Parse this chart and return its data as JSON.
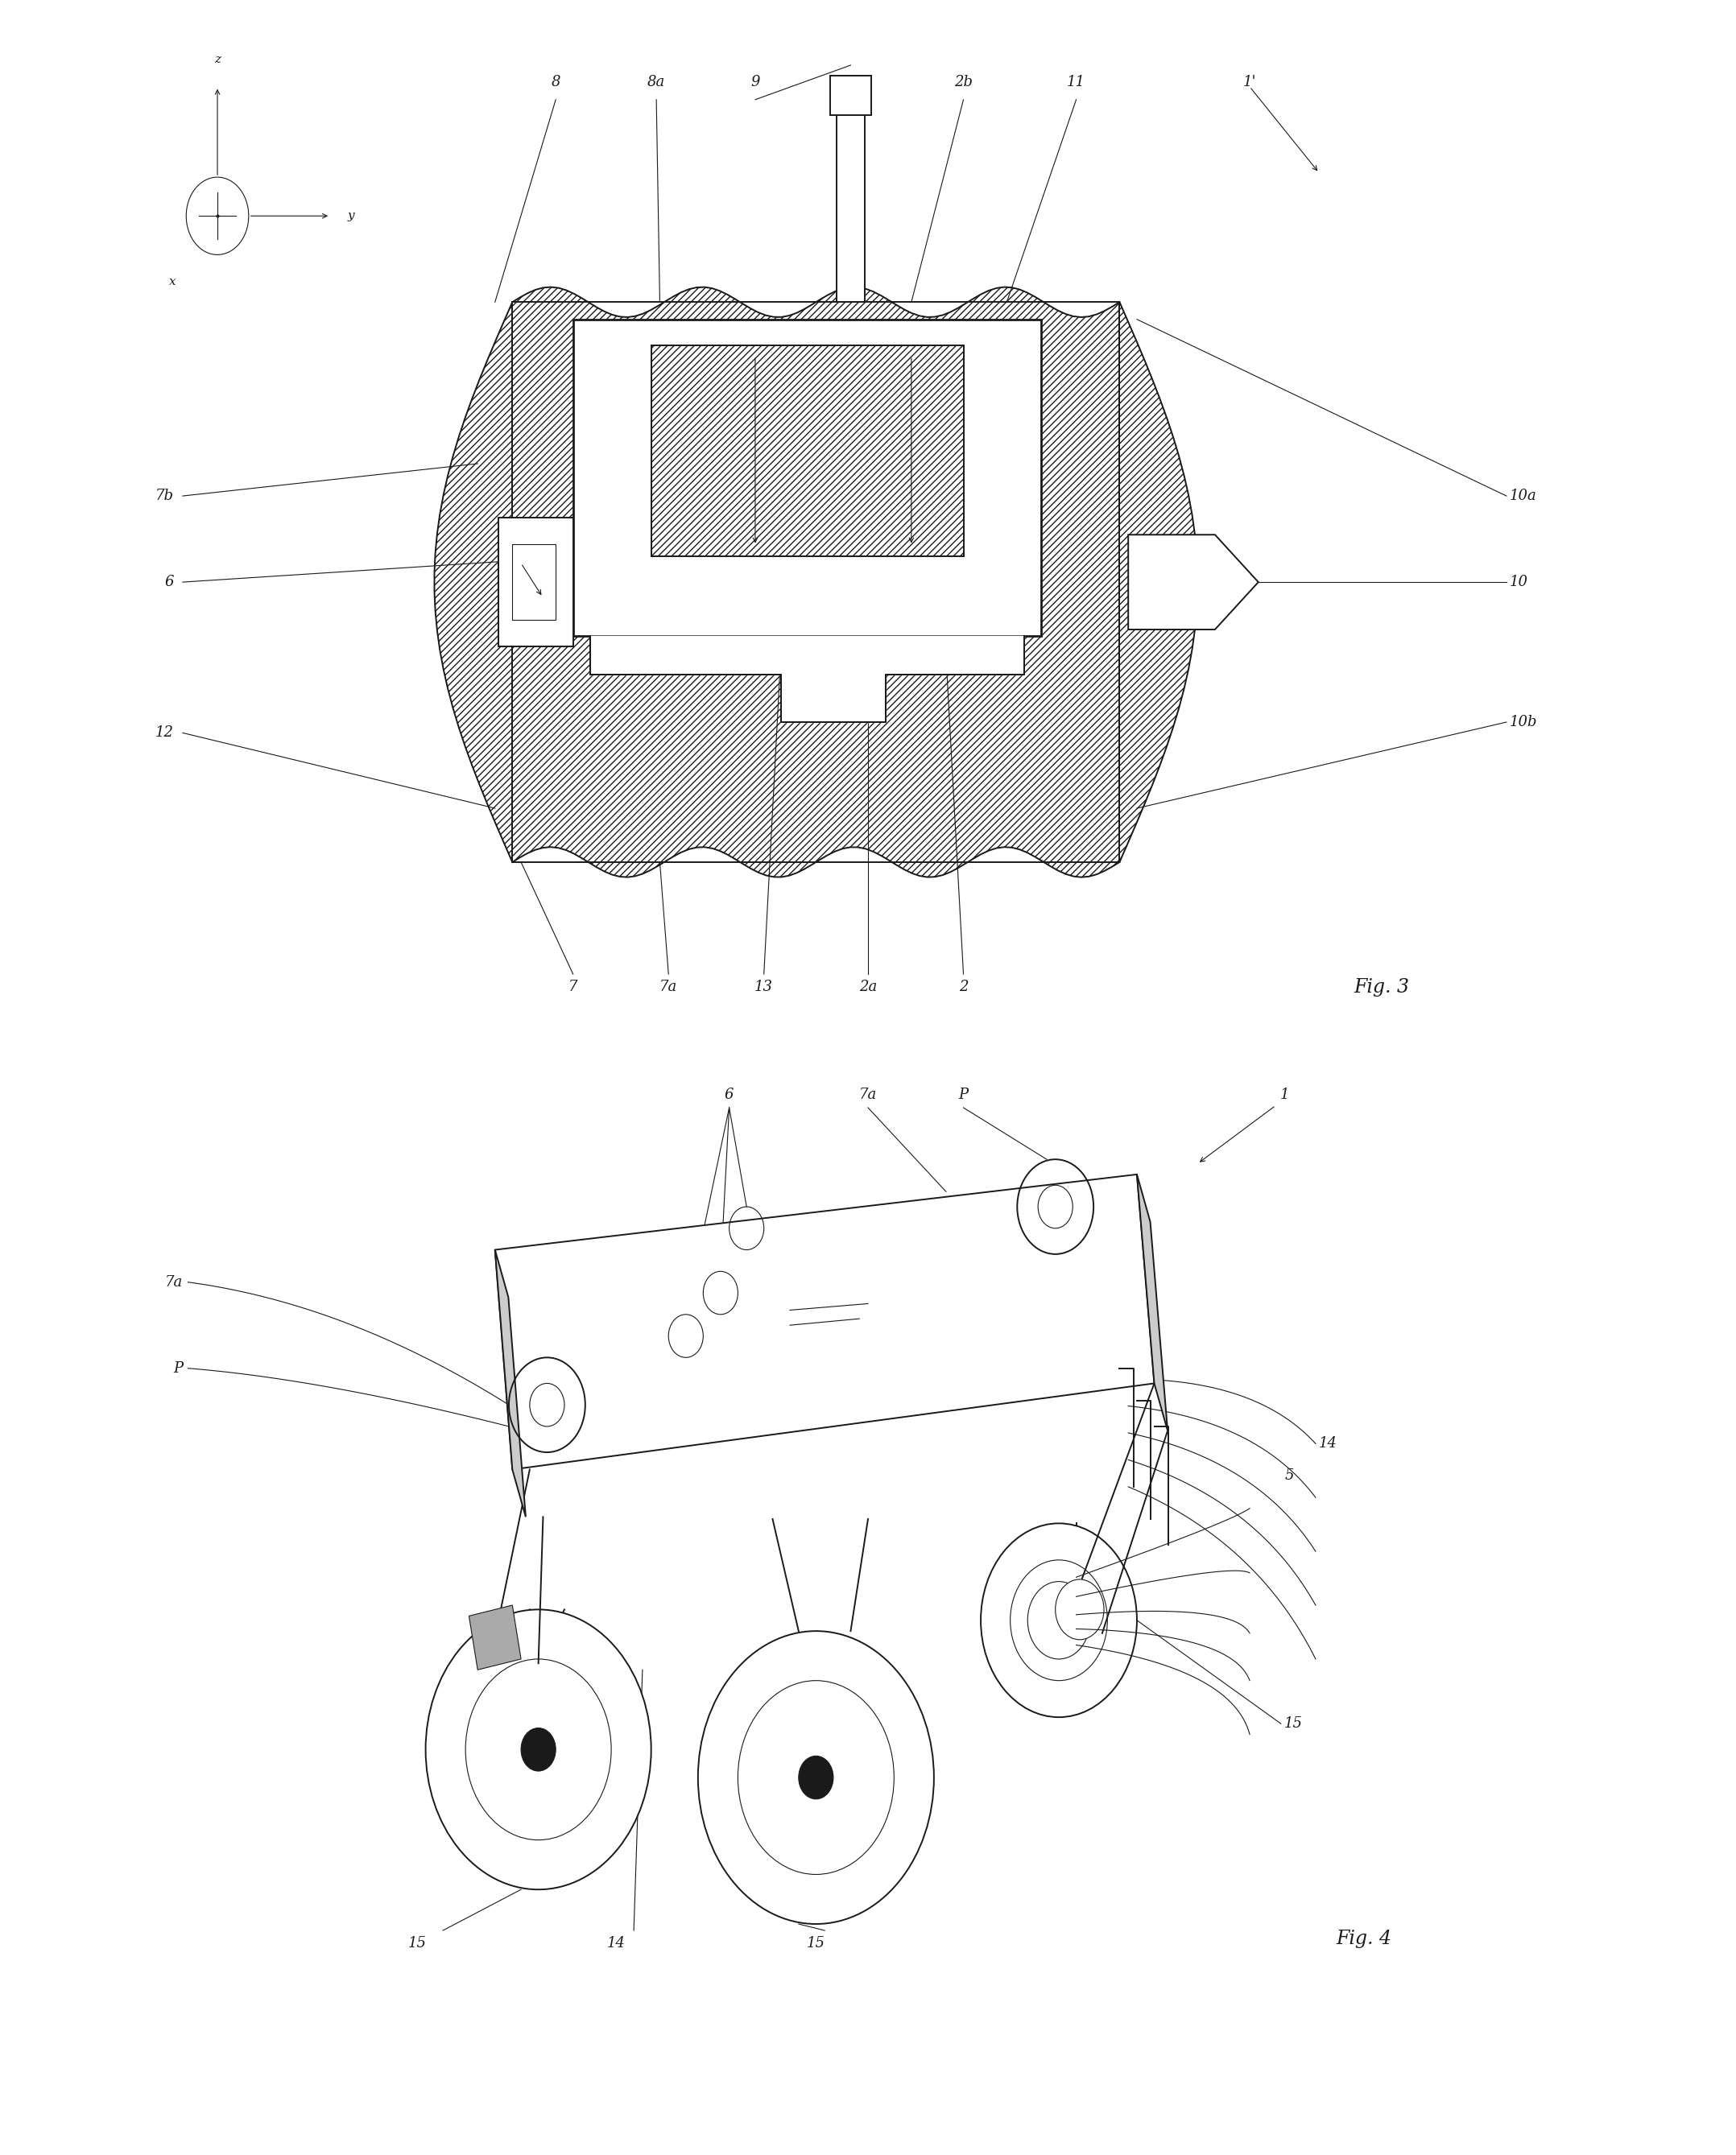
{
  "bg_color": "#ffffff",
  "line_color": "#1a1a1a",
  "fig_width": 21.56,
  "fig_height": 26.77,
  "fig3_label": "Fig. 3",
  "fig4_label": "Fig. 4",
  "axis_labels": {
    "x": "x",
    "y": "y",
    "z": "z"
  }
}
